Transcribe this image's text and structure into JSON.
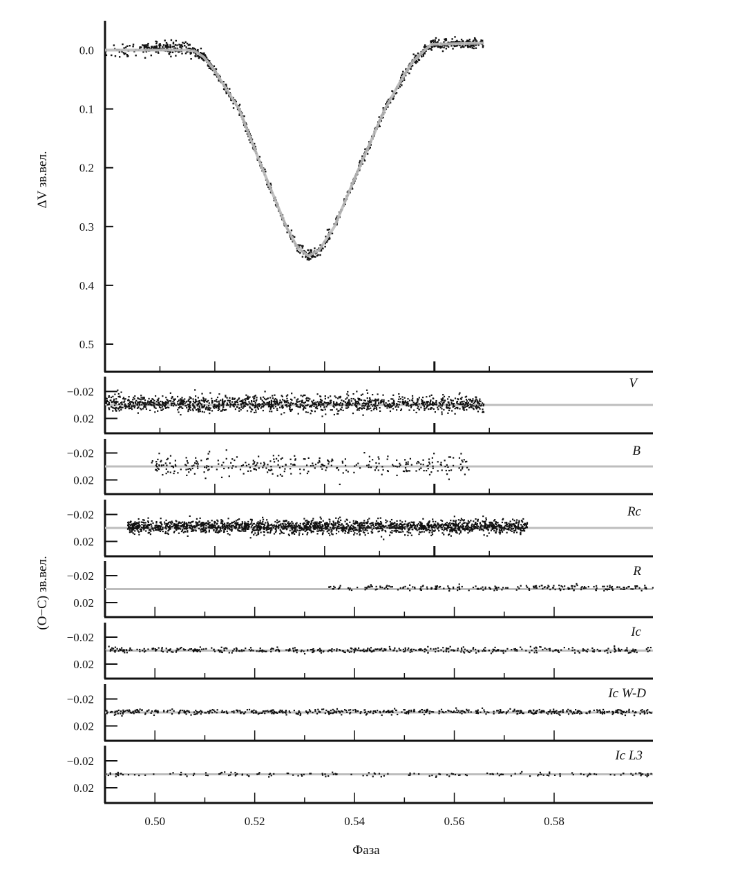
{
  "chart_data": [
    {
      "type": "scatter",
      "panel": "light-curve",
      "ylabel": "ΔV зв.вел.",
      "ylim": [
        -0.05,
        0.547
      ],
      "y_inverted": true,
      "xlim": [
        0.49,
        0.5898
      ],
      "yticks": [
        0.0,
        0.1,
        0.2,
        0.3,
        0.4,
        0.5
      ],
      "ytick_labels": [
        "0.0",
        "0.1",
        "0.2",
        "0.3",
        "0.4",
        "0.5"
      ],
      "x_tick_step": 0.01,
      "x_major_ticks": [
        0.51,
        0.53,
        0.55
      ],
      "model_color": "#bdbdbd",
      "point_color": "#111111",
      "model": [
        [
          0.49,
          0
        ],
        [
          0.505,
          0
        ],
        [
          0.5064,
          0.002
        ],
        [
          0.508,
          0.012
        ],
        [
          0.51,
          0.035
        ],
        [
          0.512,
          0.065
        ],
        [
          0.5144,
          0.1
        ],
        [
          0.5186,
          0.2
        ],
        [
          0.523,
          0.3
        ],
        [
          0.525,
          0.335
        ],
        [
          0.527,
          0.35
        ],
        [
          0.529,
          0.34
        ],
        [
          0.5318,
          0.3
        ],
        [
          0.5363,
          0.2
        ],
        [
          0.541,
          0.1
        ],
        [
          0.544,
          0.05
        ],
        [
          0.546,
          0.02
        ],
        [
          0.548,
          0.002
        ],
        [
          0.5495,
          -0.01
        ],
        [
          0.559,
          -0.012
        ]
      ],
      "observed_range": [
        0.49,
        0.559
      ],
      "scatter_mag": 0.005
    },
    {
      "type": "scatter",
      "panel": "residuals",
      "ylabel": "(O−C) зв.вел.",
      "xlabel": "Фаза",
      "ylim": [
        -0.043,
        0.041
      ],
      "y_inverted": true,
      "yticks": [
        -0.02,
        0.02
      ],
      "ytick_labels": [
        "−0.02",
        "0.02"
      ],
      "bottom_xlim": [
        0.49,
        0.5998
      ],
      "bottom_xticks": [
        0.5,
        0.52,
        0.54,
        0.56,
        0.58
      ],
      "bottom_xtick_labels": [
        "0.50",
        "0.52",
        "0.54",
        "0.56",
        "0.58"
      ],
      "zero_line_color": "#bdbdbd",
      "series": [
        {
          "name": "V",
          "x_scale": "top",
          "x_range": [
            0.49,
            0.559
          ],
          "scatter_mag": 0.006,
          "offset": -0.002,
          "n": 1400
        },
        {
          "name": "B",
          "x_scale": "top",
          "x_range": [
            0.4985,
            0.5563
          ],
          "scatter_mag": 0.008,
          "offset": -0.002,
          "n": 320
        },
        {
          "name": "Rc",
          "x_scale": "top",
          "x_range": [
            0.4941,
            0.5669
          ],
          "scatter_mag": 0.005,
          "offset": -0.002,
          "n": 2000
        },
        {
          "name": "R",
          "x_scale": "bottom",
          "x_range": [
            0.534,
            0.5998
          ],
          "scatter_mag": 0.002,
          "offset": -0.002,
          "n": 220
        },
        {
          "name": "Ic",
          "x_scale": "bottom",
          "x_range": [
            0.49,
            0.5998
          ],
          "scatter_mag": 0.002,
          "offset": -0.001,
          "n": 450
        },
        {
          "name": "Ic W-D",
          "x_scale": "bottom",
          "x_range": [
            0.49,
            0.5998
          ],
          "scatter_mag": 0.002,
          "offset": -0.001,
          "n": 550
        },
        {
          "name": "Ic L3",
          "x_scale": "bottom",
          "x_range": [
            0.49,
            0.5998
          ],
          "scatter_mag": 0.0015,
          "offset": 0.0,
          "n": 160
        }
      ]
    }
  ]
}
